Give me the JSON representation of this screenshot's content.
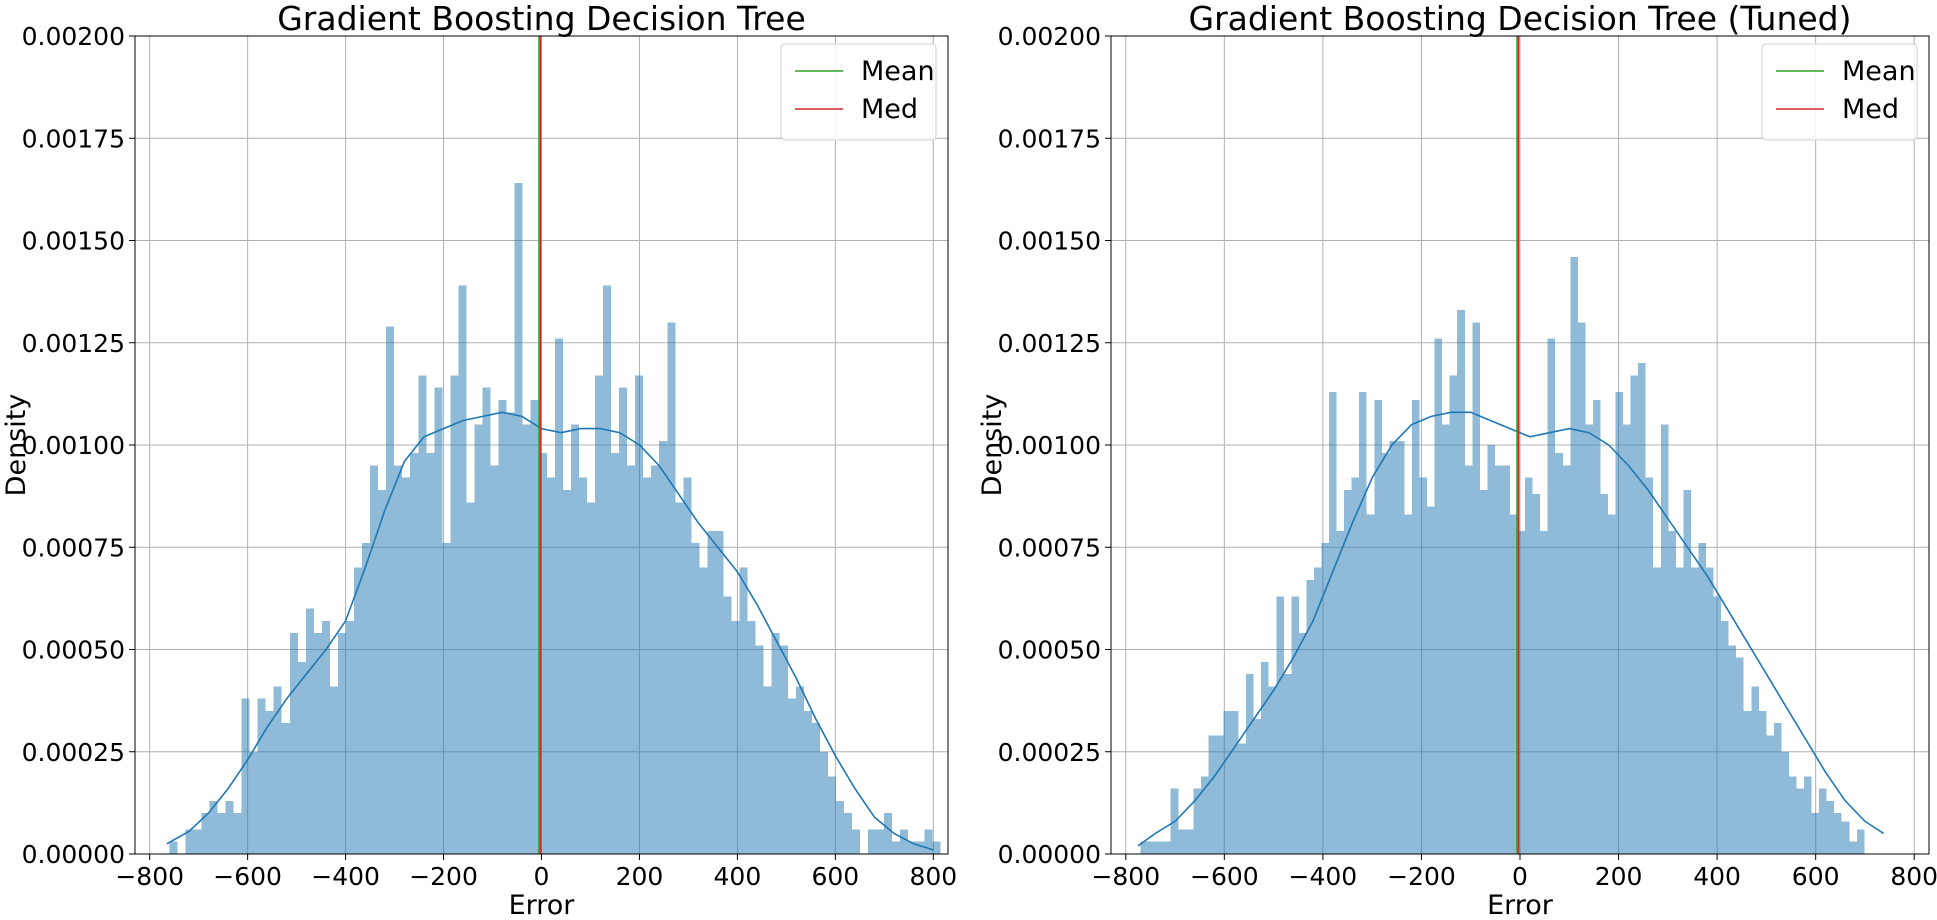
{
  "figure": {
    "background": "#ffffff"
  },
  "chart_data": [
    {
      "type": "histogram",
      "title": "Gradient Boosting Decision Tree",
      "xlabel": "Error",
      "ylabel": "Density",
      "xlim": [
        -830,
        830
      ],
      "ylim": [
        0,
        0.002
      ],
      "xticks": [
        -800,
        -600,
        -400,
        -200,
        0,
        200,
        400,
        600,
        800
      ],
      "xtick_labels": [
        "−800",
        "−600",
        "−400",
        "−200",
        "0",
        "200",
        "400",
        "600",
        "800"
      ],
      "yticks": [
        0,
        0.00025,
        0.0005,
        0.00075,
        0.001,
        0.00125,
        0.0015,
        0.00175,
        0.002
      ],
      "ytick_labels": [
        "0.00000",
        "0.00025",
        "0.00050",
        "0.00075",
        "0.00100",
        "0.00125",
        "0.00150",
        "0.00175",
        "0.00200"
      ],
      "grid": true,
      "legend": {
        "placement": "top-right",
        "entries": [
          {
            "label": "Mean",
            "color": "#2ca02c"
          },
          {
            "label": "Med",
            "color": "#d62728"
          }
        ]
      },
      "bar_color": "#1f77b4",
      "bar_opacity": 0.5,
      "kde_color": "#1f77b4",
      "bins": {
        "start": -760,
        "width": 16.4
      },
      "densities": [
        3e-05,
        0,
        6e-05,
        6e-05,
        0.0001,
        0.00013,
        0.0001,
        0.00013,
        0.0001,
        0.00038,
        0.00025,
        0.00038,
        0.00035,
        0.00041,
        0.00032,
        0.00054,
        0.00047,
        0.0006,
        0.00054,
        0.00057,
        0.00041,
        0.00054,
        0.00057,
        0.0007,
        0.00076,
        0.00095,
        0.00089,
        0.00129,
        0.00095,
        0.00092,
        0.00098,
        0.00117,
        0.00098,
        0.00114,
        0.00076,
        0.00117,
        0.00139,
        0.00086,
        0.00105,
        0.00114,
        0.00095,
        0.00111,
        0.00108,
        0.00164,
        0.00105,
        0.00111,
        0.00098,
        0.00092,
        0.00126,
        0.00089,
        0.00105,
        0.00092,
        0.00086,
        0.00117,
        0.00139,
        0.00098,
        0.00114,
        0.00095,
        0.00117,
        0.00092,
        0.00095,
        0.00101,
        0.0013,
        0.00086,
        0.00092,
        0.00076,
        0.0007,
        0.00079,
        0.00079,
        0.00063,
        0.00057,
        0.0007,
        0.00057,
        0.00051,
        0.00041,
        0.00054,
        0.00051,
        0.00038,
        0.00041,
        0.00035,
        0.00032,
        0.00025,
        0.00019,
        0.00013,
        0.0001,
        6e-05,
        0,
        6e-05,
        6e-05,
        0.0001,
        3e-05,
        6e-05,
        3e-05,
        3e-05,
        6e-05,
        3e-05
      ],
      "kde": {
        "x": [
          -765,
          -720,
          -680,
          -640,
          -600,
          -560,
          -520,
          -480,
          -440,
          -400,
          -360,
          -320,
          -280,
          -240,
          -200,
          -160,
          -120,
          -80,
          -40,
          0,
          40,
          80,
          120,
          160,
          200,
          240,
          280,
          320,
          360,
          400,
          440,
          480,
          520,
          560,
          600,
          640,
          680,
          720,
          760,
          800
        ],
        "y": [
          2.5e-05,
          5.5e-05,
          0.0001,
          0.00016,
          0.00023,
          0.00031,
          0.00038,
          0.00044,
          0.0005,
          0.00057,
          0.0007,
          0.00084,
          0.00096,
          0.00102,
          0.00104,
          0.00106,
          0.00107,
          0.00108,
          0.00107,
          0.00104,
          0.00103,
          0.00104,
          0.00104,
          0.00103,
          0.001,
          0.00095,
          0.00088,
          0.00081,
          0.00075,
          0.00069,
          0.00061,
          0.00052,
          0.00043,
          0.00033,
          0.00024,
          0.00016,
          9e-05,
          5e-05,
          2.5e-05,
          1e-05
        ]
      },
      "mean": -5,
      "median": -2
    },
    {
      "type": "histogram",
      "title": "Gradient Boosting Decision Tree (Tuned)",
      "xlabel": "Error",
      "ylabel": "Density",
      "xlim": [
        -830,
        830
      ],
      "ylim": [
        0,
        0.002
      ],
      "xticks": [
        -800,
        -600,
        -400,
        -200,
        0,
        200,
        400,
        600,
        800
      ],
      "xtick_labels": [
        "−800",
        "−600",
        "−400",
        "−200",
        "0",
        "200",
        "400",
        "600",
        "800"
      ],
      "yticks": [
        0,
        0.00025,
        0.0005,
        0.00075,
        0.001,
        0.00125,
        0.0015,
        0.00175,
        0.002
      ],
      "ytick_labels": [
        "0.00000",
        "0.00025",
        "0.00050",
        "0.00075",
        "0.00100",
        "0.00125",
        "0.00150",
        "0.00175",
        "0.00200"
      ],
      "grid": true,
      "legend": {
        "placement": "top-right",
        "entries": [
          {
            "label": "Mean",
            "color": "#2ca02c"
          },
          {
            "label": "Med",
            "color": "#d62728"
          }
        ]
      },
      "bar_color": "#1f77b4",
      "bar_opacity": 0.5,
      "kde_color": "#1f77b4",
      "bins": {
        "start": -770,
        "width": 15.3
      },
      "densities": [
        3e-05,
        3e-05,
        3e-05,
        3e-05,
        0.00016,
        6e-05,
        6e-05,
        0.00016,
        0.00019,
        0.00029,
        0.00029,
        0.00035,
        0.00035,
        0.00027,
        0.00044,
        0.00033,
        0.00047,
        0.00041,
        0.00063,
        0.00044,
        0.00063,
        0.00054,
        0.00067,
        0.0007,
        0.00076,
        0.00113,
        0.00079,
        0.00089,
        0.00092,
        0.00113,
        0.00083,
        0.00111,
        0.00098,
        0.00101,
        0.00101,
        0.00083,
        0.00111,
        0.00092,
        0.00085,
        0.00126,
        0.00105,
        0.00117,
        0.00133,
        0.00095,
        0.0013,
        0.00089,
        0.001,
        0.00095,
        0.00095,
        0.00083,
        0.00079,
        0.00092,
        0.00088,
        0.00079,
        0.00126,
        0.00098,
        0.00095,
        0.00146,
        0.0013,
        0.00105,
        0.00111,
        0.00088,
        0.00083,
        0.00113,
        0.00105,
        0.00117,
        0.0012,
        0.00092,
        0.0007,
        0.00105,
        0.00079,
        0.0007,
        0.00089,
        0.0007,
        0.00076,
        0.0007,
        0.00063,
        0.00057,
        0.00051,
        0.00048,
        0.00035,
        0.00041,
        0.00035,
        0.00029,
        0.00032,
        0.00025,
        0.00019,
        0.00016,
        0.00019,
        0.0001,
        0.00016,
        0.00013,
        0.0001,
        8e-05,
        3e-05,
        6e-05
      ],
      "kde": {
        "x": [
          -775,
          -740,
          -700,
          -660,
          -620,
          -580,
          -540,
          -500,
          -460,
          -420,
          -380,
          -340,
          -300,
          -260,
          -220,
          -180,
          -140,
          -100,
          -60,
          -20,
          20,
          60,
          100,
          140,
          180,
          220,
          260,
          300,
          340,
          380,
          420,
          460,
          500,
          540,
          580,
          620,
          660,
          700,
          738
        ],
        "y": [
          2e-05,
          5e-05,
          8e-05,
          0.00013,
          0.00019,
          0.00026,
          0.00033,
          0.0004,
          0.00048,
          0.00057,
          0.00069,
          0.00081,
          0.00092,
          0.001,
          0.00105,
          0.00107,
          0.00108,
          0.00108,
          0.00106,
          0.00104,
          0.00102,
          0.00103,
          0.00104,
          0.00103,
          0.001,
          0.00095,
          0.00089,
          0.00082,
          0.00075,
          0.00068,
          0.0006,
          0.00052,
          0.00044,
          0.00036,
          0.00028,
          0.0002,
          0.00013,
          8e-05,
          5e-05
        ]
      },
      "mean": -6,
      "median": -3
    }
  ]
}
